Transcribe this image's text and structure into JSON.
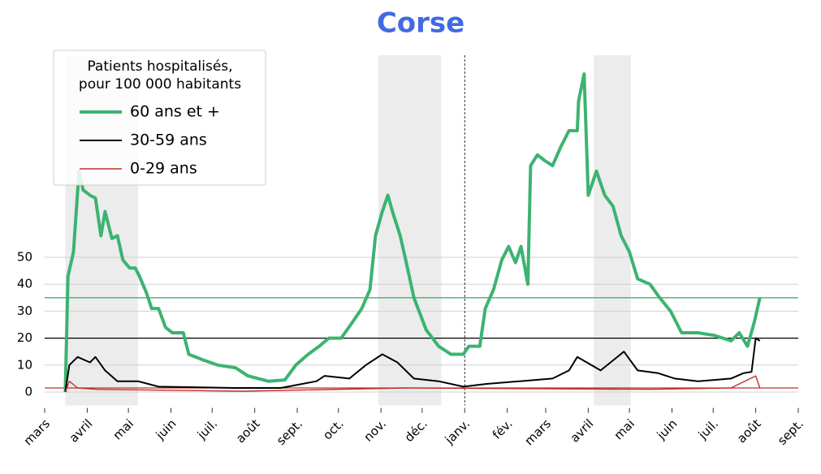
{
  "chart_data": {
    "type": "line",
    "title": "Corse",
    "legend_title": [
      "Patients hospitalisés,",
      "pour 100 000 habitants"
    ],
    "xlim": [
      0,
      549
    ],
    "xticks": [
      {
        "value": 0,
        "label": "mars"
      },
      {
        "value": 31,
        "label": "avril"
      },
      {
        "value": 61,
        "label": "mai"
      },
      {
        "value": 92,
        "label": "juin"
      },
      {
        "value": 122,
        "label": "juil."
      },
      {
        "value": 153,
        "label": "août"
      },
      {
        "value": 184,
        "label": "sept."
      },
      {
        "value": 214,
        "label": "oct."
      },
      {
        "value": 245,
        "label": "nov."
      },
      {
        "value": 275,
        "label": "déc."
      },
      {
        "value": 306,
        "label": "janv."
      },
      {
        "value": 337,
        "label": "fév."
      },
      {
        "value": 365,
        "label": "mars"
      },
      {
        "value": 396,
        "label": "avril"
      },
      {
        "value": 426,
        "label": "mai"
      },
      {
        "value": 457,
        "label": "juin"
      },
      {
        "value": 487,
        "label": "juil."
      },
      {
        "value": 518,
        "label": "août"
      },
      {
        "value": 549,
        "label": "sept."
      }
    ],
    "ylim": [
      -5,
      125
    ],
    "yticks": [
      0,
      10,
      20,
      30,
      40,
      50
    ],
    "grid": true,
    "spans": [
      [
        15,
        68
      ],
      [
        243,
        289
      ],
      [
        400,
        427
      ]
    ],
    "vline": 306,
    "series": [
      {
        "name": "60 ans et +",
        "color": "#3cb371",
        "width": 4,
        "reference": 35,
        "x": [
          15,
          17,
          21,
          25,
          28,
          33,
          37,
          41,
          44,
          49,
          53,
          57,
          62,
          66,
          69,
          74,
          78,
          83,
          88,
          93,
          101,
          105,
          115,
          126,
          139,
          148,
          163,
          175,
          183,
          192,
          200,
          207,
          216,
          223,
          231,
          237,
          241,
          246,
          250,
          254,
          259,
          263,
          269,
          278,
          287,
          296,
          305,
          309,
          317,
          321,
          327,
          333,
          338,
          343,
          347,
          352,
          354,
          359,
          364,
          370,
          376,
          382,
          388,
          389,
          393,
          396,
          402,
          408,
          414,
          420,
          426,
          432,
          441,
          448,
          456,
          464,
          476,
          488,
          500,
          506,
          512,
          517,
          521
        ],
        "values": [
          0,
          43,
          52,
          82,
          75,
          73,
          72,
          58,
          67,
          57,
          58,
          49,
          46,
          46,
          43,
          37,
          31,
          31,
          24,
          22,
          22,
          14,
          12,
          10,
          9,
          6,
          4,
          4.5,
          10,
          14,
          17,
          20,
          20,
          25,
          31,
          38,
          58,
          67,
          73,
          66,
          58,
          49,
          35,
          23,
          17,
          14,
          14,
          17,
          17,
          31,
          38,
          49,
          54,
          48,
          54,
          40,
          84,
          88,
          86,
          84,
          91,
          97,
          97,
          108,
          118,
          73,
          82,
          73,
          69,
          58,
          52,
          42,
          40,
          35,
          30,
          22,
          22,
          21,
          19,
          22,
          17,
          26,
          35
        ]
      },
      {
        "name": "30-59 ans",
        "color": "#000000",
        "width": 2,
        "reference": 20,
        "x": [
          15,
          18,
          24,
          33,
          37,
          44,
          53,
          68,
          83,
          139,
          172,
          198,
          204,
          222,
          234,
          246,
          257,
          269,
          287,
          305,
          322,
          346,
          370,
          382,
          388,
          405,
          422,
          432,
          447,
          459,
          476,
          500,
          509,
          515,
          518,
          521
        ],
        "values": [
          0,
          10,
          13,
          11,
          13,
          8,
          4,
          4,
          2,
          1.5,
          1.5,
          4,
          6,
          5,
          10,
          14,
          11,
          5,
          4,
          2,
          3,
          4,
          5,
          8,
          13,
          8,
          15,
          8,
          7,
          5,
          4,
          5,
          7,
          7.5,
          20,
          19
        ]
      },
      {
        "name": "0-29 ans",
        "color": "#c0302a",
        "width": 1.4,
        "reference": 1.5,
        "x": [
          15,
          18,
          24,
          38,
          145,
          263,
          441,
          500,
          518,
          521
        ],
        "values": [
          0,
          4,
          1.5,
          1,
          0.3,
          1.5,
          1,
          1.5,
          6,
          1.5
        ]
      }
    ]
  }
}
